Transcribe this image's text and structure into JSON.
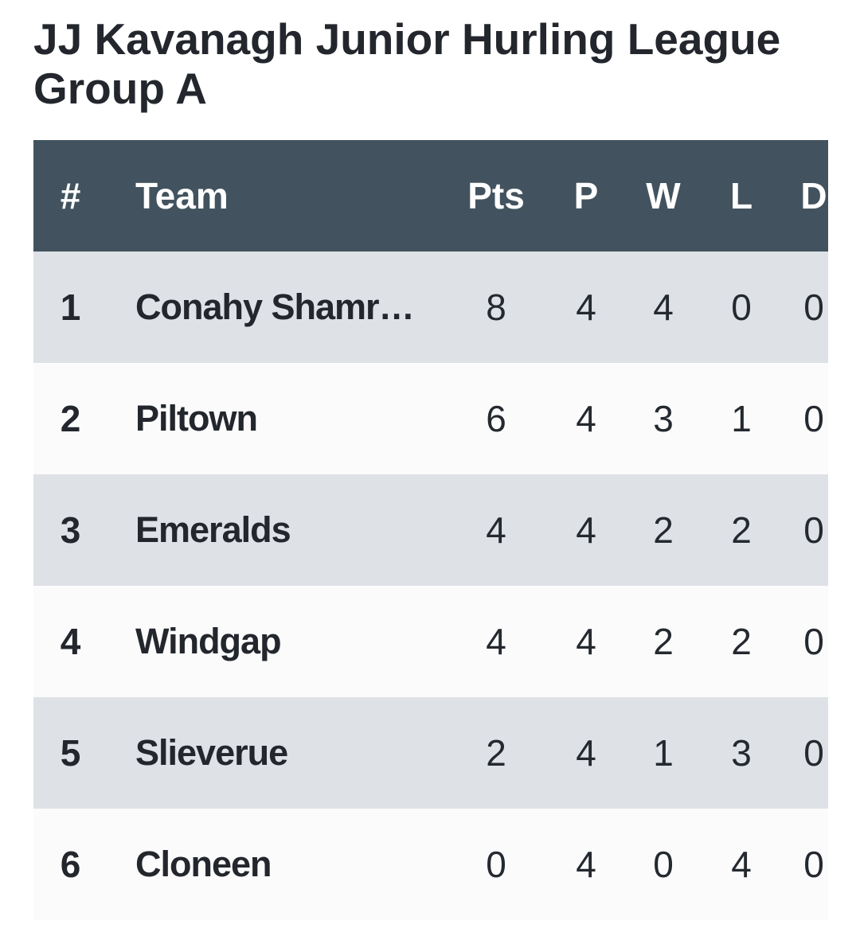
{
  "page_title": "JJ Kavanagh Junior Hurling League Group A",
  "colors": {
    "header_bg": "#42535f",
    "header_text": "#ffffff",
    "row_odd_bg": "#dee1e5",
    "row_even_bg": "#fbfbfc",
    "text_dark": "#23272d",
    "page_bg": "#ffffff"
  },
  "chart_data": {
    "type": "table",
    "title": "JJ Kavanagh Junior Hurling League Group A",
    "columns": [
      "#",
      "Team",
      "Pts",
      "P",
      "W",
      "L",
      "D"
    ],
    "rows": [
      {
        "rank": "1",
        "team": "Conahy Shamr…",
        "pts": "8",
        "p": "4",
        "w": "4",
        "l": "0",
        "d": "0"
      },
      {
        "rank": "2",
        "team": "Piltown",
        "pts": "6",
        "p": "4",
        "w": "3",
        "l": "1",
        "d": "0"
      },
      {
        "rank": "3",
        "team": "Emeralds",
        "pts": "4",
        "p": "4",
        "w": "2",
        "l": "2",
        "d": "0"
      },
      {
        "rank": "4",
        "team": "Windgap",
        "pts": "4",
        "p": "4",
        "w": "2",
        "l": "2",
        "d": "0"
      },
      {
        "rank": "5",
        "team": "Slieverue",
        "pts": "2",
        "p": "4",
        "w": "1",
        "l": "3",
        "d": "0"
      },
      {
        "rank": "6",
        "team": "Cloneen",
        "pts": "0",
        "p": "4",
        "w": "0",
        "l": "4",
        "d": "0"
      }
    ]
  },
  "table": {
    "headers": {
      "rank": "#",
      "team": "Team",
      "pts": "Pts",
      "played": "P",
      "wins": "W",
      "losses": "L",
      "draws": "D"
    }
  }
}
